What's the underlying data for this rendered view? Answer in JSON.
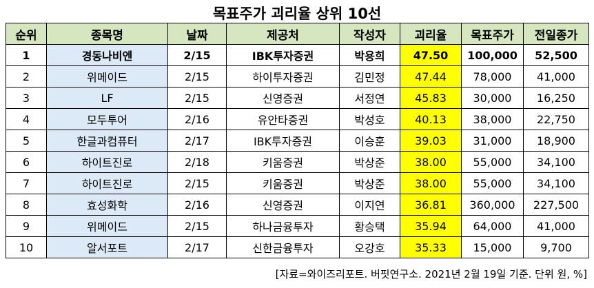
{
  "title": "목표주가 괴리율 상위 10선",
  "table": {
    "columns": [
      "순위",
      "종목명",
      "날짜",
      "제공처",
      "작성자",
      "괴리율",
      "목표주가",
      "전일종가"
    ],
    "rows": [
      {
        "rank": "1",
        "stock": "경동나비엔",
        "date": "2/15",
        "provider": "IBK투자증권",
        "author": "박용희",
        "rate": "47.50",
        "target": "100,000",
        "close": "52,500"
      },
      {
        "rank": "2",
        "stock": "위메이드",
        "date": "2/15",
        "provider": "하이투자증권",
        "author": "김민정",
        "rate": "47.44",
        "target": "78,000",
        "close": "41,000"
      },
      {
        "rank": "3",
        "stock": "LF",
        "date": "2/15",
        "provider": "신영증권",
        "author": "서정연",
        "rate": "45.83",
        "target": "30,000",
        "close": "16,250"
      },
      {
        "rank": "4",
        "stock": "모두투어",
        "date": "2/16",
        "provider": "유안타증권",
        "author": "박성호",
        "rate": "40.13",
        "target": "38,000",
        "close": "22,750"
      },
      {
        "rank": "5",
        "stock": "한글과컴퓨터",
        "date": "2/17",
        "provider": "IBK투자증권",
        "author": "이승훈",
        "rate": "39.03",
        "target": "31,000",
        "close": "18,900"
      },
      {
        "rank": "6",
        "stock": "하이트진로",
        "date": "2/18",
        "provider": "키움증권",
        "author": "박상준",
        "rate": "38.00",
        "target": "55,000",
        "close": "34,100"
      },
      {
        "rank": "7",
        "stock": "하이트진로",
        "date": "2/15",
        "provider": "키움증권",
        "author": "박상준",
        "rate": "38.00",
        "target": "55,000",
        "close": "34,100"
      },
      {
        "rank": "8",
        "stock": "효성화학",
        "date": "2/16",
        "provider": "신영증권",
        "author": "이지연",
        "rate": "36.81",
        "target": "360,000",
        "close": "227,500"
      },
      {
        "rank": "9",
        "stock": "위메이드",
        "date": "2/15",
        "provider": "하나금융투자",
        "author": "황승택",
        "rate": "35.94",
        "target": "64,000",
        "close": "41,000"
      },
      {
        "rank": "10",
        "stock": "알서포트",
        "date": "2/17",
        "provider": "신한금융투자",
        "author": "오강호",
        "rate": "35.33",
        "target": "15,000",
        "close": "9,700"
      }
    ]
  },
  "source": "[자료=와이즈리포트. 버핏연구소. 2021년 2월 19일 기준. 단위 원, %]",
  "colors": {
    "header_bg": "#d6e7bf",
    "stock_bg": "#dce9f7",
    "rate_bg": "#ffff00"
  }
}
